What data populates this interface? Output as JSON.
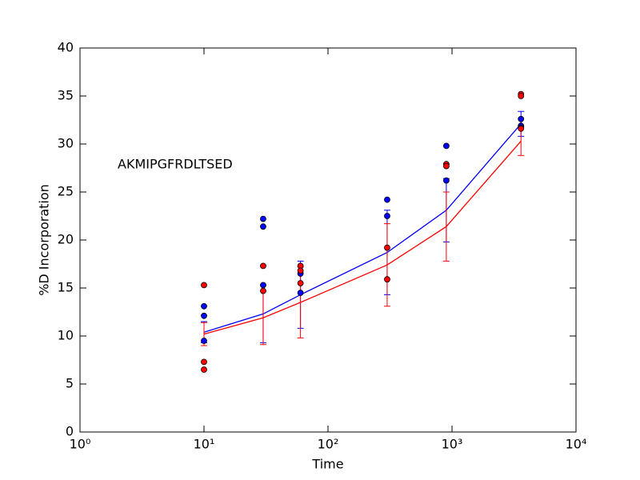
{
  "chart_data": {
    "type": "line",
    "xlabel": "Time",
    "ylabel": "%D Incorporation",
    "annotation": "AKMIPGFRDLTSED",
    "xscale": "log",
    "xlim": [
      1,
      10000
    ],
    "xticks": [
      {
        "value": 1,
        "label": "10⁰"
      },
      {
        "value": 10,
        "label": "10¹"
      },
      {
        "value": 100,
        "label": "10²"
      },
      {
        "value": 1000,
        "label": "10³"
      },
      {
        "value": 10000,
        "label": "10⁴"
      }
    ],
    "ylim": [
      0,
      40
    ],
    "yticks": [
      0,
      5,
      10,
      15,
      20,
      25,
      30,
      35,
      40
    ],
    "x": [
      10,
      30,
      60,
      300,
      900,
      3600
    ],
    "series": [
      {
        "color": "#0000ff",
        "values": [
          10.4,
          12.3,
          14.3,
          18.7,
          23.1,
          32.1
        ],
        "errors": [
          1.1,
          3.0,
          3.5,
          4.4,
          3.3,
          1.3
        ]
      },
      {
        "color": "#ff0000",
        "values": [
          10.2,
          11.9,
          13.5,
          17.4,
          21.4,
          30.3
        ],
        "errors": [
          1.2,
          2.8,
          3.7,
          4.3,
          3.6,
          1.5
        ]
      }
    ],
    "points": [
      {
        "color": "#0000ff",
        "x": [
          10,
          10,
          10,
          30,
          30,
          30,
          60,
          60,
          300,
          300,
          900,
          900,
          3600,
          3600,
          3600
        ],
        "values": [
          13.1,
          12.1,
          9.5,
          22.2,
          21.4,
          15.3,
          16.5,
          14.5,
          24.2,
          22.5,
          29.8,
          26.2,
          32.6,
          31.9,
          31.7
        ]
      },
      {
        "color": "#ff0000",
        "x": [
          10,
          10,
          10,
          30,
          30,
          60,
          60,
          60,
          300,
          300,
          900,
          900,
          3600,
          3600,
          3600
        ],
        "values": [
          15.3,
          7.3,
          6.5,
          17.3,
          14.7,
          17.3,
          16.8,
          15.5,
          19.2,
          15.9,
          27.9,
          27.7,
          35.2,
          35.0,
          31.6
        ]
      }
    ]
  }
}
